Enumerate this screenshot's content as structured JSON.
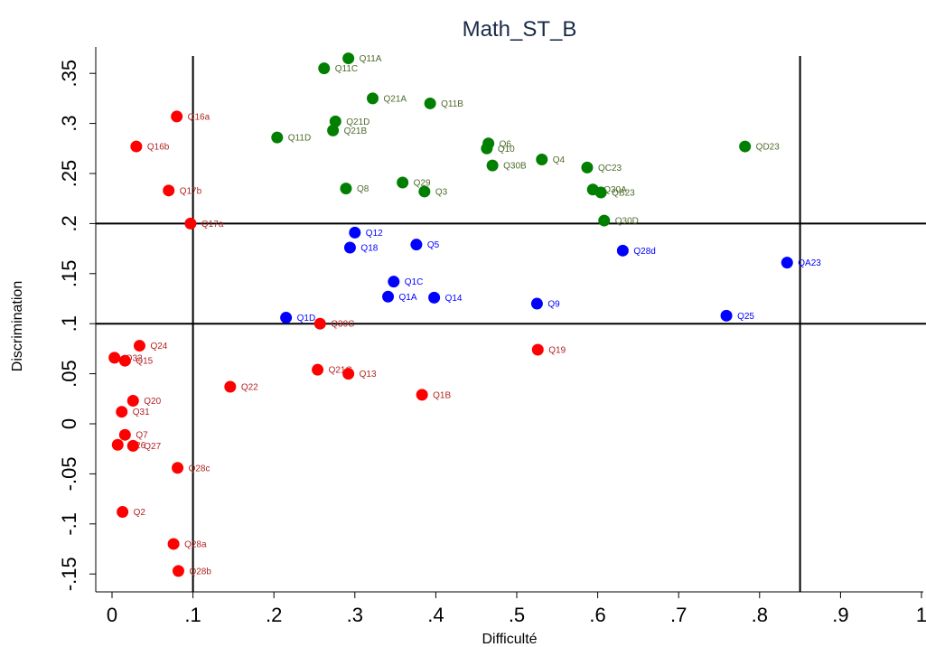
{
  "chart_data": {
    "type": "scatter",
    "title": "Math_ST_B",
    "xlabel": "Difficulté",
    "ylabel": "Discrimination",
    "xlim": [
      -0.02,
      1.0
    ],
    "ylim": [
      -0.17,
      0.375
    ],
    "x_ticks": [
      0,
      0.1,
      0.2,
      0.3,
      0.4,
      0.5,
      0.6,
      0.7,
      0.8,
      0.9,
      1
    ],
    "x_tick_labels": [
      "0",
      ".1",
      ".2",
      ".3",
      ".4",
      ".5",
      ".6",
      ".7",
      ".8",
      ".9",
      "1"
    ],
    "y_ticks": [
      -0.15,
      -0.1,
      -0.05,
      0,
      0.05,
      0.1,
      0.15,
      0.2,
      0.25,
      0.3,
      0.35
    ],
    "y_tick_labels": [
      "-.15",
      "-.1",
      "-.05",
      "0",
      ".05",
      ".1",
      ".15",
      ".2",
      ".25",
      ".3",
      ".35"
    ],
    "reference_lines": {
      "x": [
        0.1,
        0.85
      ],
      "y": [
        0.1,
        0.2
      ]
    },
    "grid": false,
    "colors": {
      "green": "#007f00",
      "blue": "#0000ff",
      "red": "#ff0000",
      "label_green": "#4d6b2a",
      "label_blue": "#0000ff",
      "label_red": "#b22222"
    },
    "series": [
      {
        "color_key": "green",
        "points": [
          {
            "label": "Q11A",
            "x": 0.292,
            "y": 0.365
          },
          {
            "label": "Q11C",
            "x": 0.262,
            "y": 0.355
          },
          {
            "label": "Q21A",
            "x": 0.322,
            "y": 0.325
          },
          {
            "label": "Q11B",
            "x": 0.393,
            "y": 0.32
          },
          {
            "label": "Q21D",
            "x": 0.276,
            "y": 0.302
          },
          {
            "label": "Q21B",
            "x": 0.273,
            "y": 0.293
          },
          {
            "label": "Q11D",
            "x": 0.204,
            "y": 0.286
          },
          {
            "label": "Q6",
            "x": 0.465,
            "y": 0.28
          },
          {
            "label": "Q10",
            "x": 0.463,
            "y": 0.275
          },
          {
            "label": "QD23",
            "x": 0.782,
            "y": 0.277
          },
          {
            "label": "Q4",
            "x": 0.531,
            "y": 0.264
          },
          {
            "label": "Q30B",
            "x": 0.47,
            "y": 0.258
          },
          {
            "label": "QC23",
            "x": 0.587,
            "y": 0.256
          },
          {
            "label": "Q29",
            "x": 0.359,
            "y": 0.241
          },
          {
            "label": "Q8",
            "x": 0.289,
            "y": 0.235
          },
          {
            "label": "Q3",
            "x": 0.386,
            "y": 0.232
          },
          {
            "label": "Q30A",
            "x": 0.594,
            "y": 0.234
          },
          {
            "label": "QB23",
            "x": 0.604,
            "y": 0.231
          },
          {
            "label": "Q30D",
            "x": 0.608,
            "y": 0.203
          }
        ]
      },
      {
        "color_key": "blue",
        "points": [
          {
            "label": "Q12",
            "x": 0.3,
            "y": 0.191
          },
          {
            "label": "Q18",
            "x": 0.294,
            "y": 0.176
          },
          {
            "label": "Q5",
            "x": 0.376,
            "y": 0.179
          },
          {
            "label": "Q28d",
            "x": 0.631,
            "y": 0.173
          },
          {
            "label": "QA23",
            "x": 0.834,
            "y": 0.161
          },
          {
            "label": "Q1C",
            "x": 0.348,
            "y": 0.142
          },
          {
            "label": "Q1A",
            "x": 0.341,
            "y": 0.127
          },
          {
            "label": "Q14",
            "x": 0.398,
            "y": 0.126
          },
          {
            "label": "Q9",
            "x": 0.525,
            "y": 0.12
          },
          {
            "label": "Q1D",
            "x": 0.215,
            "y": 0.106
          },
          {
            "label": "Q25",
            "x": 0.759,
            "y": 0.108
          }
        ]
      },
      {
        "color_key": "red",
        "points": [
          {
            "label": "Q16a",
            "x": 0.08,
            "y": 0.307
          },
          {
            "label": "Q16b",
            "x": 0.03,
            "y": 0.277
          },
          {
            "label": "Q17b",
            "x": 0.07,
            "y": 0.233
          },
          {
            "label": "Q17a",
            "x": 0.097,
            "y": 0.2
          },
          {
            "label": "Q30C",
            "x": 0.257,
            "y": 0.1
          },
          {
            "label": "Q24",
            "x": 0.034,
            "y": 0.078
          },
          {
            "label": "Q19",
            "x": 0.526,
            "y": 0.074
          },
          {
            "label": "Q32",
            "x": 0.003,
            "y": 0.066
          },
          {
            "label": "Q15",
            "x": 0.016,
            "y": 0.063
          },
          {
            "label": "Q21C",
            "x": 0.254,
            "y": 0.054
          },
          {
            "label": "Q13",
            "x": 0.292,
            "y": 0.05
          },
          {
            "label": "Q22",
            "x": 0.146,
            "y": 0.037
          },
          {
            "label": "Q1B",
            "x": 0.383,
            "y": 0.029
          },
          {
            "label": "Q20",
            "x": 0.026,
            "y": 0.023
          },
          {
            "label": "Q31",
            "x": 0.012,
            "y": 0.012
          },
          {
            "label": "Q7",
            "x": 0.016,
            "y": -0.011
          },
          {
            "label": "Q26",
            "x": 0.007,
            "y": -0.021
          },
          {
            "label": "Q27",
            "x": 0.026,
            "y": -0.022
          },
          {
            "label": "Q28c",
            "x": 0.081,
            "y": -0.044
          },
          {
            "label": "Q2",
            "x": 0.013,
            "y": -0.088
          },
          {
            "label": "Q28a",
            "x": 0.076,
            "y": -0.12
          },
          {
            "label": "Q28b",
            "x": 0.082,
            "y": -0.147
          }
        ]
      }
    ]
  }
}
